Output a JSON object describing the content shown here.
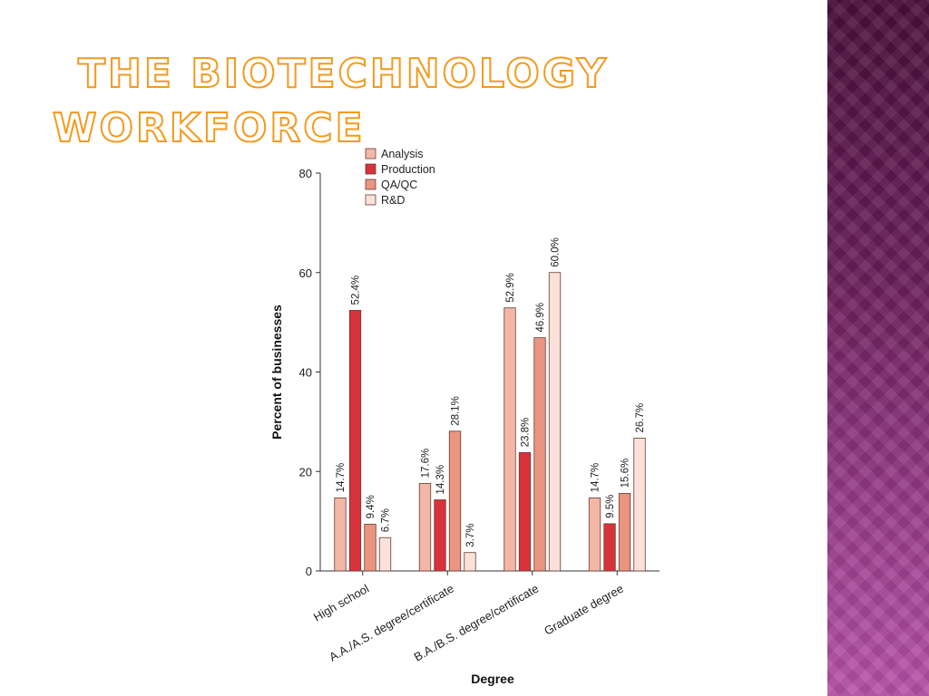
{
  "slide": {
    "title_line1": "The Biotechnology",
    "title_line2": "Workforce"
  },
  "colors": {
    "accent": "#f39a1e",
    "sidebar": "#7a2a6a"
  },
  "chart_data": {
    "type": "bar",
    "categories": [
      "High school",
      "A.A./A.S. degree/certificate",
      "B.A./B.S. degree/certificate",
      "Graduate degree"
    ],
    "series": [
      {
        "name": "Analysis",
        "color": "#f2b7a6",
        "values": [
          14.7,
          17.6,
          52.9,
          14.7
        ],
        "labels": [
          "14.7%",
          "17.6%",
          "52.9%",
          "14.7%"
        ]
      },
      {
        "name": "Production",
        "color": "#d8323a",
        "values": [
          52.4,
          14.3,
          23.8,
          9.5
        ],
        "labels": [
          "52.4%",
          "14.3%",
          "23.8%",
          "9.5%"
        ]
      },
      {
        "name": "QA/QC",
        "color": "#ea9580",
        "values": [
          9.4,
          28.1,
          46.9,
          15.6
        ],
        "labels": [
          "9.4%",
          "28.1%",
          "46.9%",
          "15.6%"
        ]
      },
      {
        "name": "R&D",
        "color": "#fbe1da",
        "values": [
          6.7,
          3.7,
          60.0,
          26.7
        ],
        "labels": [
          "6.7%",
          "3.7%",
          "60.0%",
          "26.7%"
        ]
      }
    ],
    "xlabel": "Degree",
    "ylabel": "Percent of businesses",
    "ylim": [
      0,
      80
    ],
    "yticks": [
      0,
      20,
      40,
      60,
      80
    ],
    "legend": "top-left",
    "grid": false
  }
}
